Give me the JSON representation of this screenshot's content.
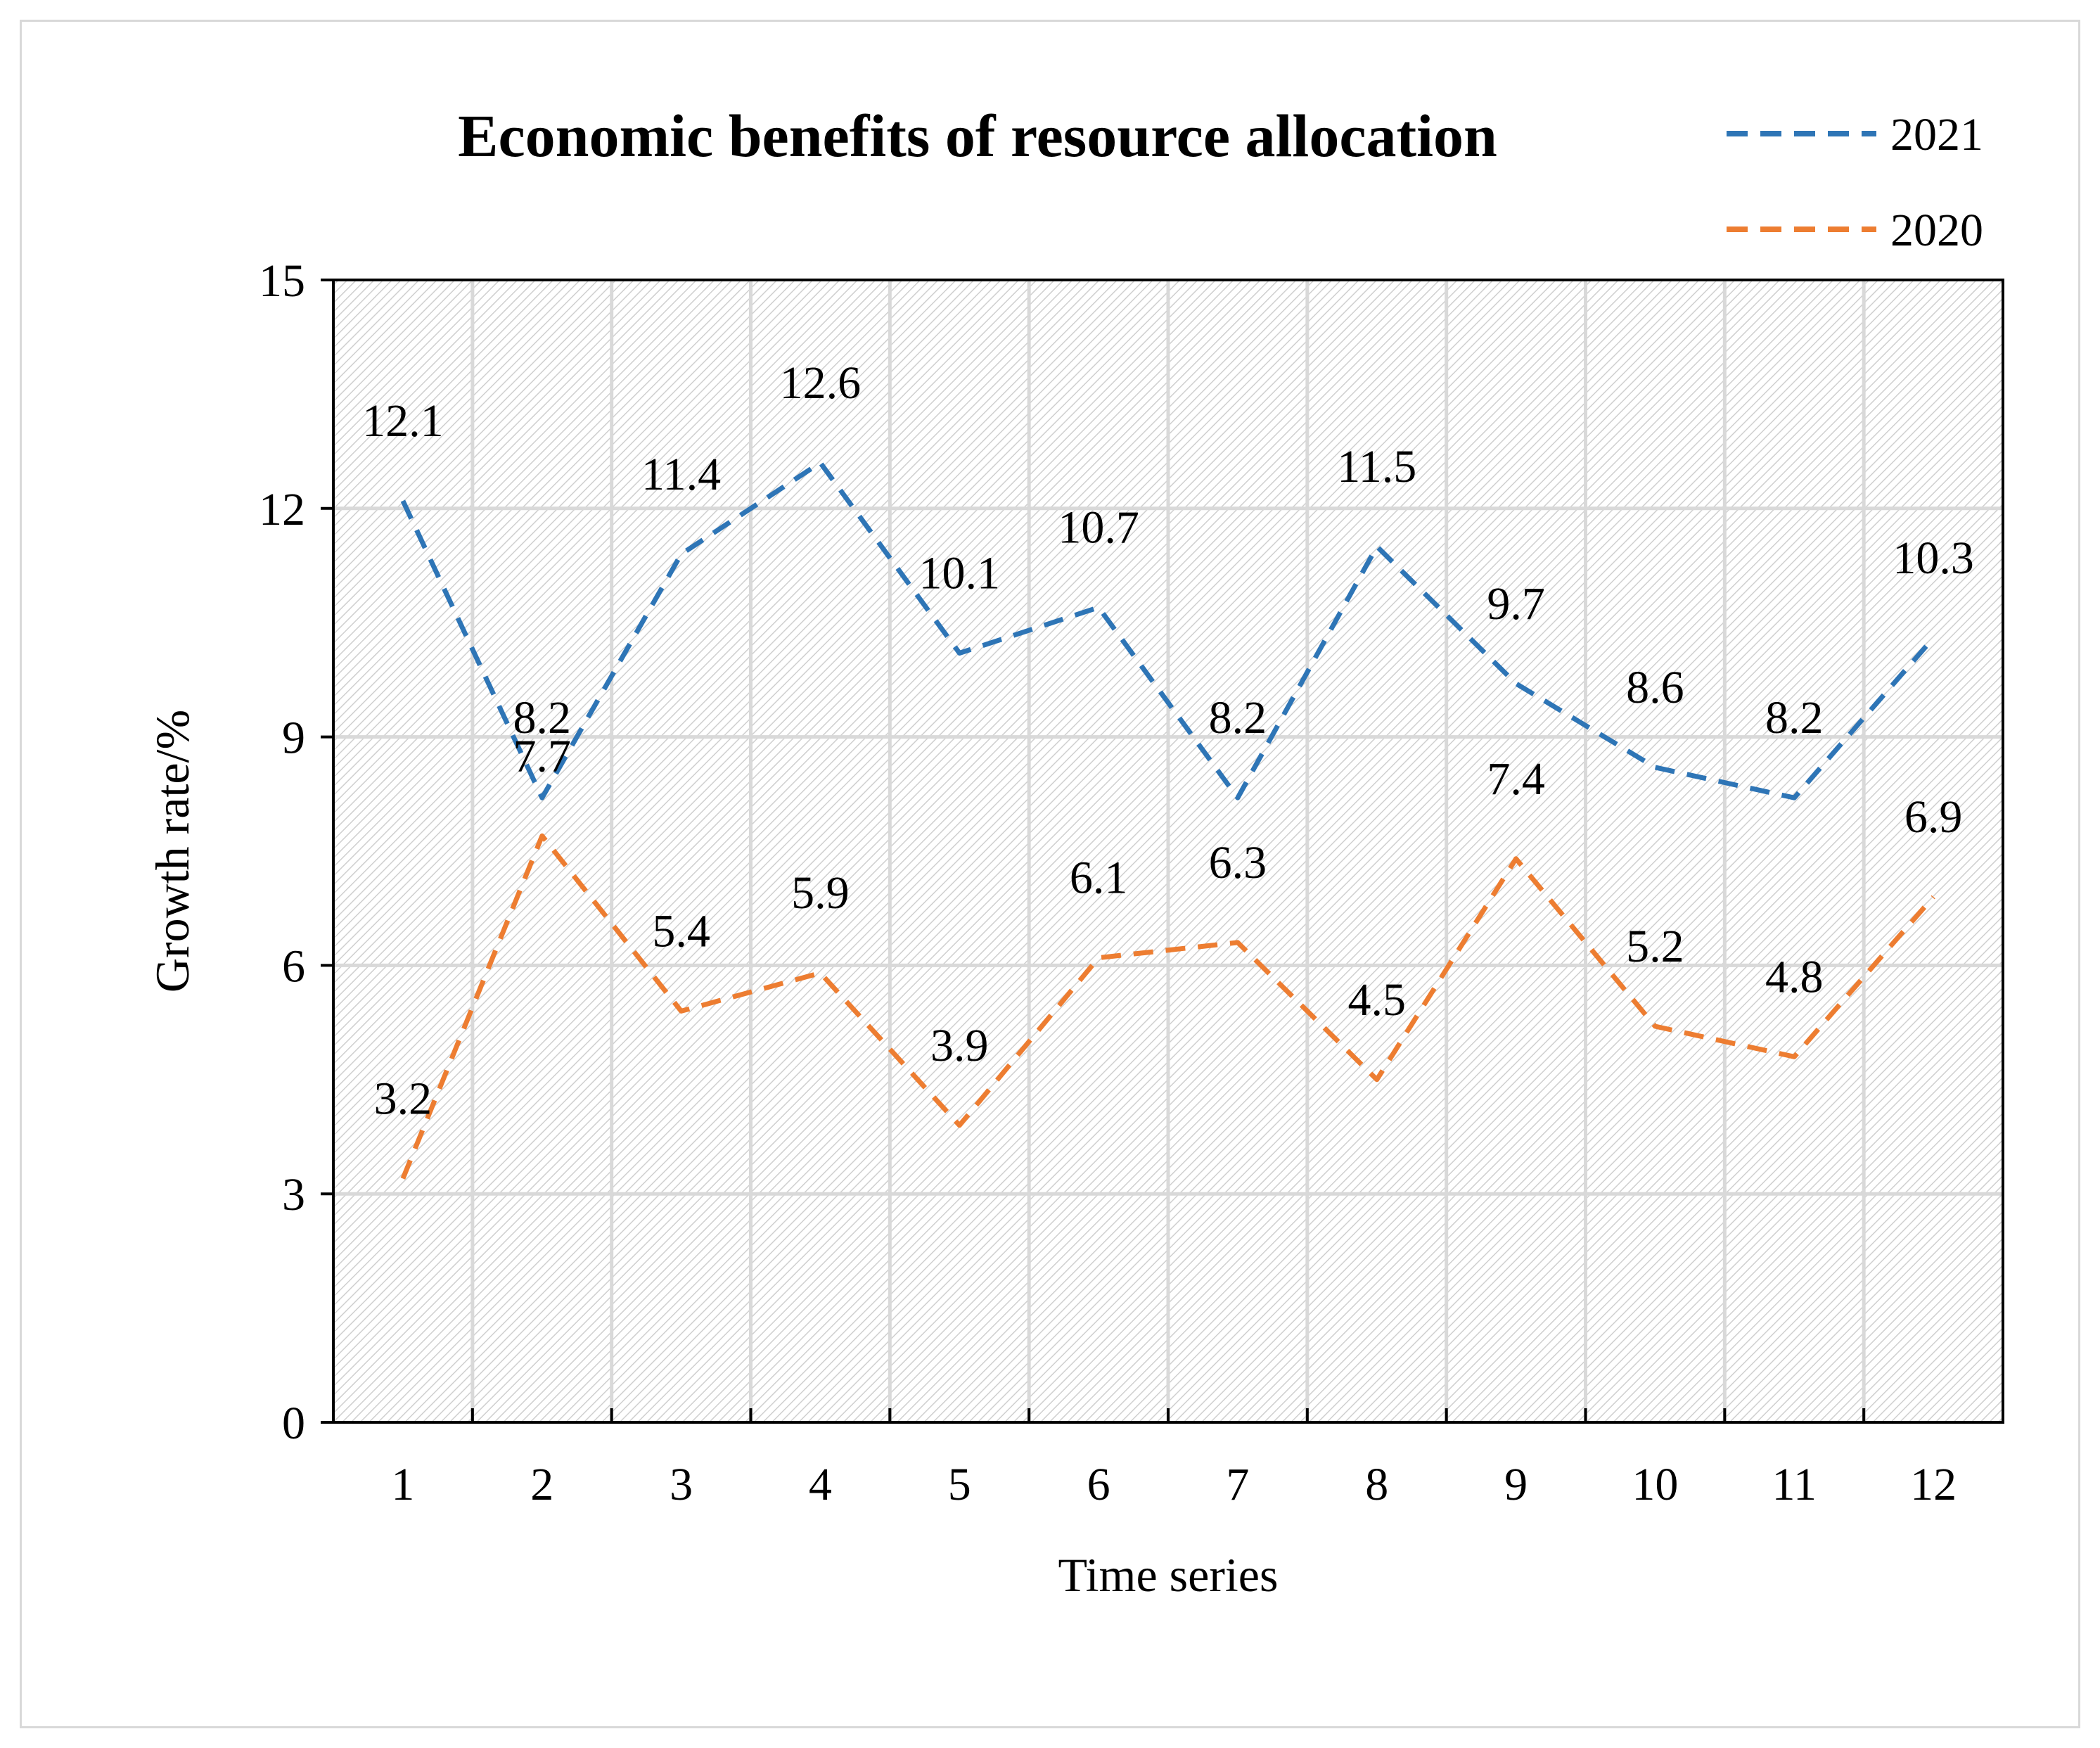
{
  "chart_data": {
    "type": "line",
    "title": "Economic benefits of resource allocation",
    "xlabel": "Time series",
    "ylabel": "Growth rate/%",
    "categories": [
      "1",
      "2",
      "3",
      "4",
      "5",
      "6",
      "7",
      "8",
      "9",
      "10",
      "11",
      "12"
    ],
    "ylim": [
      0,
      15
    ],
    "yticks": [
      "0",
      "3",
      "6",
      "9",
      "12",
      "15"
    ],
    "grid": true,
    "legend_position": "top-right",
    "series": [
      {
        "name": "2021",
        "color": "#2e75b6",
        "values": [
          12.1,
          8.2,
          11.4,
          12.6,
          10.1,
          10.7,
          8.2,
          11.5,
          9.7,
          8.6,
          8.2,
          10.3
        ],
        "labels": [
          "12.1",
          "8.2",
          "11.4",
          "12.6",
          "10.1",
          "10.7",
          "8.2",
          "11.5",
          "9.7",
          "8.6",
          "8.2",
          "10.3"
        ]
      },
      {
        "name": "2020",
        "color": "#ed7d31",
        "values": [
          3.2,
          7.7,
          5.4,
          5.9,
          3.9,
          6.1,
          6.3,
          4.5,
          7.4,
          5.2,
          4.8,
          6.9
        ],
        "labels": [
          "3.2",
          "7.7",
          "5.4",
          "5.9",
          "3.9",
          "6.1",
          "6.3",
          "4.5",
          "7.4",
          "5.2",
          "4.8",
          "6.9"
        ]
      }
    ]
  }
}
